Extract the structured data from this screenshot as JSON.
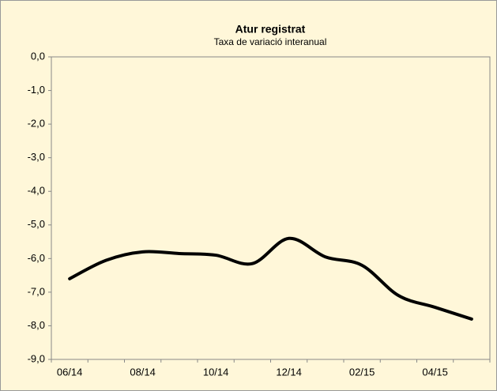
{
  "chart_data": {
    "type": "line",
    "title": "Atur registrat",
    "subtitle": "Taxa de variació interanual",
    "categories": [
      "06/14",
      null,
      "08/14",
      null,
      "10/14",
      null,
      "12/14",
      null,
      "02/15",
      null,
      "04/15",
      null
    ],
    "series": [
      {
        "name": null,
        "color": "#000000",
        "values": [
          -6.6,
          -6.05,
          -5.8,
          -5.85,
          -5.9,
          -6.15,
          -5.4,
          -5.95,
          -6.2,
          -7.1,
          -7.45,
          -7.8
        ]
      }
    ],
    "ylim": [
      -9,
      0
    ],
    "yticks": [
      {
        "value": 0,
        "label": "0,0"
      },
      {
        "value": -1,
        "label": "-1,0"
      },
      {
        "value": -2,
        "label": "-2,0"
      },
      {
        "value": -3,
        "label": "-3,0"
      },
      {
        "value": -4,
        "label": "-4,0"
      },
      {
        "value": -5,
        "label": "-5,0"
      },
      {
        "value": -6,
        "label": "-6,0"
      },
      {
        "value": -7,
        "label": "-7,0"
      },
      {
        "value": -8,
        "label": "-8,0"
      },
      {
        "value": -9,
        "label": "-9,0"
      }
    ],
    "grid": false
  }
}
